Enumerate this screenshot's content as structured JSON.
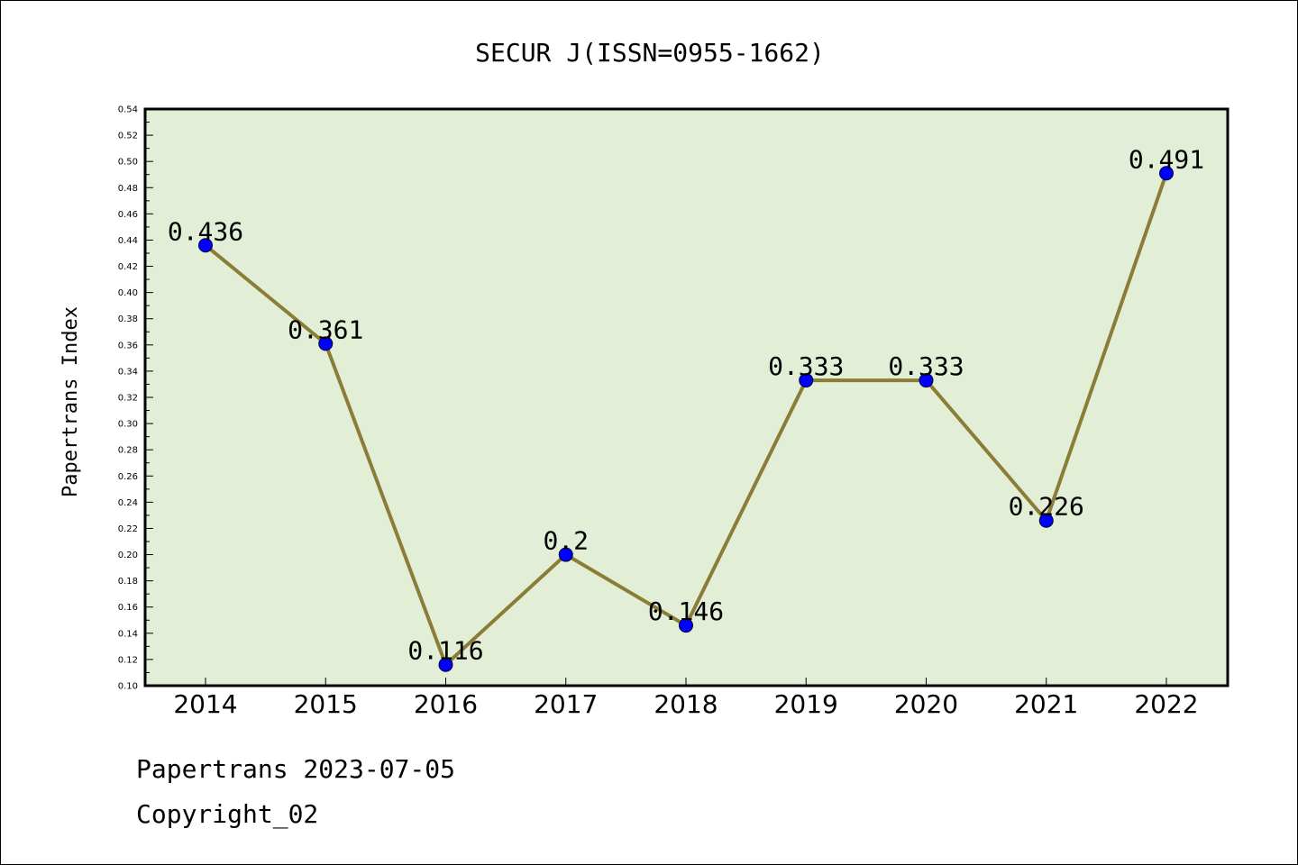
{
  "chart_data": {
    "type": "line",
    "title": "SECUR J(ISSN=0955-1662)",
    "ylabel": "Papertrans Index",
    "xlabel": "",
    "categories": [
      "2014",
      "2015",
      "2016",
      "2017",
      "2018",
      "2019",
      "2020",
      "2021",
      "2022"
    ],
    "values": [
      0.436,
      0.361,
      0.116,
      0.2,
      0.146,
      0.333,
      0.333,
      0.226,
      0.491
    ],
    "data_labels": [
      "0.436",
      "0.361",
      "0.116",
      "0.2",
      "0.146",
      "0.333",
      "0.333",
      "0.226",
      "0.491"
    ],
    "ylim": [
      0.1,
      0.54
    ],
    "yticks": [
      "0.10",
      "0.12",
      "0.14",
      "0.16",
      "0.18",
      "0.20",
      "0.22",
      "0.24",
      "0.26",
      "0.28",
      "0.30",
      "0.32",
      "0.34",
      "0.36",
      "0.38",
      "0.40",
      "0.42",
      "0.44",
      "0.46",
      "0.48",
      "0.50",
      "0.52",
      "0.54"
    ],
    "grid": false,
    "colors": {
      "plot_background": "#e2efd6",
      "line": "#8b7d37",
      "marker": "#0000ff"
    }
  },
  "footer": {
    "date_line": "Papertrans 2023-07-05",
    "copyright_line": "Copyright_02"
  }
}
